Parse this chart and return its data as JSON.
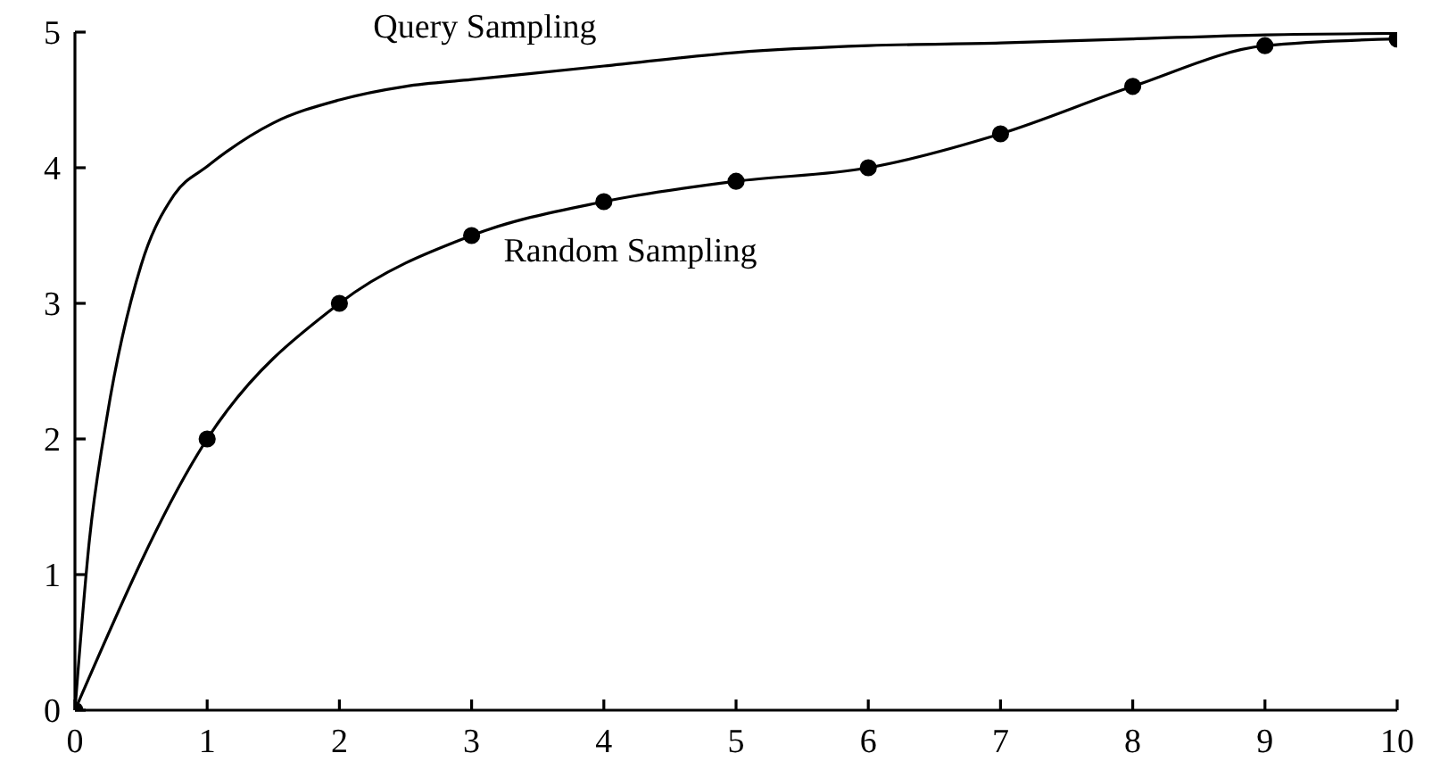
{
  "chart_data": {
    "type": "line",
    "xlim": [
      0,
      10
    ],
    "ylim": [
      0,
      5
    ],
    "xticks": [
      0,
      1,
      2,
      3,
      4,
      5,
      6,
      7,
      8,
      9,
      10
    ],
    "yticks": [
      0,
      1,
      2,
      3,
      4,
      5
    ],
    "grid": false,
    "legend": false,
    "series": [
      {
        "name": "Query Sampling",
        "color": "#000000",
        "marker": "none",
        "x": [
          0,
          0.11,
          0.24,
          0.5,
          0.75,
          1,
          1.5,
          2,
          2.5,
          3,
          4,
          5,
          6,
          7,
          8,
          9,
          10
        ],
        "values": [
          0,
          1.26,
          2.15,
          3.28,
          3.8,
          4.01,
          4.33,
          4.5,
          4.6,
          4.65,
          4.75,
          4.85,
          4.9,
          4.92,
          4.95,
          4.98,
          4.99
        ]
      },
      {
        "name": "Random Sampling",
        "color": "#000000",
        "marker": "circle",
        "x": [
          0,
          1,
          2,
          3,
          4,
          5,
          6,
          7,
          8,
          9,
          10
        ],
        "values": [
          0,
          2,
          3,
          3.5,
          3.75,
          3.9,
          4,
          4.25,
          4.6,
          4.9,
          4.95
        ]
      }
    ]
  }
}
